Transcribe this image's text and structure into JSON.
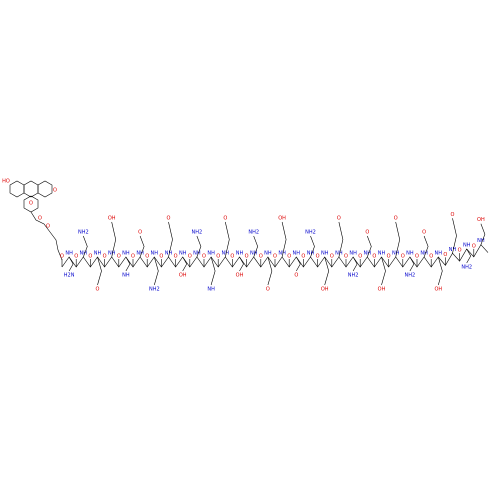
{
  "molecule": {
    "dye_labels": [
      "HO",
      "O",
      "O",
      "O",
      "O"
    ],
    "backbone_labels": [
      "O",
      "NH",
      "O",
      "NH",
      "O",
      "NH",
      "O",
      "NH",
      "O",
      "NH",
      "O",
      "NH",
      "O",
      "NH",
      "O",
      "NH",
      "O",
      "NH",
      "O",
      "NH",
      "O",
      "NH",
      "O",
      "NH",
      "O",
      "NH",
      "O",
      "NH",
      "O",
      "NH",
      "O",
      "NH",
      "O",
      "NH",
      "O",
      "NH",
      "O",
      "NH",
      "O",
      "NH",
      "O",
      "NH",
      "O",
      "NH",
      "O",
      "NH",
      "O",
      "NH",
      "O",
      "NH",
      "O",
      "NH",
      "O",
      "NH",
      "O",
      "NH",
      "O",
      "NH",
      "O",
      "NH"
    ],
    "side_labels": [
      "H2N",
      "NH2",
      "O",
      "OH",
      "NH",
      "O",
      "NH2",
      "O",
      "OH",
      "NH2",
      "NH",
      "O",
      "OH",
      "NH2",
      "O",
      "OH",
      "O",
      "NH2",
      "OH",
      "O",
      "NH2",
      "O",
      "OH",
      "O",
      "NH2",
      "O",
      "OH",
      "O",
      "NH2",
      "OH"
    ]
  }
}
